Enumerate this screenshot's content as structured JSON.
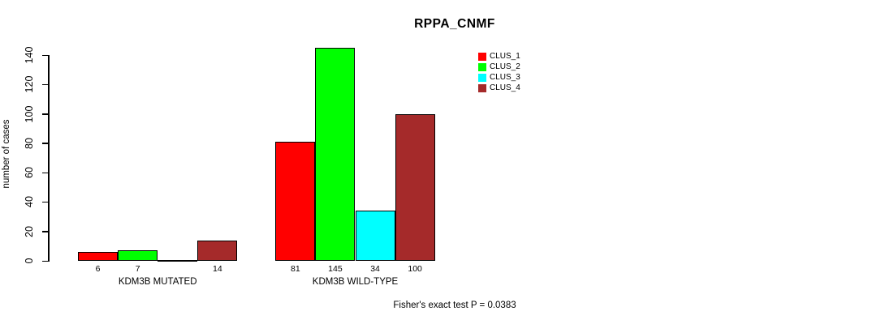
{
  "title": "RPPA_CNMF",
  "footnote": "Fisher's exact test P = 0.0383",
  "chart_data": {
    "type": "bar",
    "title": "RPPA_CNMF",
    "xlabel": "",
    "ylabel": "number of cases",
    "ylim": [
      0,
      140
    ],
    "yticks": [
      0,
      20,
      40,
      60,
      80,
      100,
      120,
      140
    ],
    "grid": false,
    "legend_position": "top-right-outside",
    "categories": [
      "KDM3B MUTATED",
      "KDM3B WILD-TYPE"
    ],
    "series": [
      {
        "name": "CLUS_1",
        "color": "#ff0000",
        "values": [
          6,
          81
        ]
      },
      {
        "name": "CLUS_2",
        "color": "#00ff00",
        "values": [
          7,
          145
        ]
      },
      {
        "name": "CLUS_3",
        "color": "#00ffff",
        "values": [
          0,
          34
        ]
      },
      {
        "name": "CLUS_4",
        "color": "#a52a2a",
        "values": [
          14,
          100
        ]
      }
    ],
    "bar_value_labels": [
      [
        "6",
        "7",
        "",
        "14"
      ],
      [
        "81",
        "145",
        "34",
        "100"
      ]
    ],
    "annotation": "Fisher's exact test P = 0.0383"
  }
}
